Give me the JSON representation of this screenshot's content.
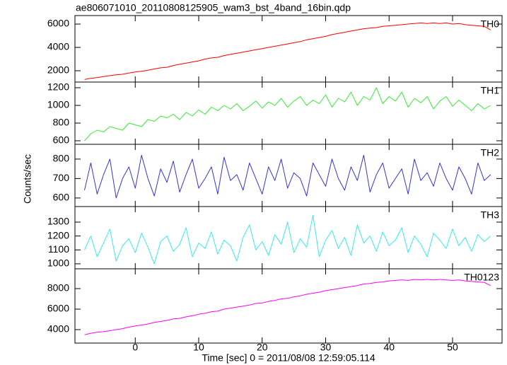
{
  "chart_data": {
    "type": "line",
    "title": "ae806071010_20110808125905_wam3_bst_4band_16bin.qdp",
    "x_label": "Time [sec] 0 = 2011/08/08 12:59:05.114",
    "y_label": "Counts/sec",
    "xlim": [
      -9.5,
      57.8
    ],
    "xticks": [
      0,
      10,
      20,
      30,
      40,
      50
    ],
    "x": [
      -8,
      -7,
      -6,
      -5,
      -4,
      -3,
      -2,
      -1,
      0,
      1,
      2,
      3,
      4,
      5,
      6,
      7,
      8,
      9,
      10,
      11,
      12,
      13,
      14,
      15,
      16,
      17,
      18,
      19,
      20,
      21,
      22,
      23,
      24,
      25,
      26,
      27,
      28,
      29,
      30,
      31,
      32,
      33,
      34,
      35,
      36,
      37,
      38,
      39,
      40,
      41,
      42,
      43,
      44,
      45,
      46,
      47,
      48,
      49,
      50,
      51,
      52,
      53,
      54,
      55,
      56
    ],
    "series": [
      {
        "name": "TH0",
        "color": "#ff0000",
        "ylim": [
          1030,
          6730
        ],
        "yticks": [
          2000,
          4000,
          6000
        ],
        "values": [
          1250,
          1350,
          1420,
          1500,
          1580,
          1650,
          1700,
          1800,
          1900,
          1950,
          2050,
          2150,
          2250,
          2300,
          2450,
          2550,
          2650,
          2750,
          2850,
          3000,
          3100,
          3150,
          3300,
          3400,
          3500,
          3600,
          3700,
          3800,
          3900,
          4000,
          4100,
          4200,
          4300,
          4400,
          4500,
          4650,
          4750,
          4850,
          4950,
          5100,
          5200,
          5300,
          5400,
          5500,
          5600,
          5650,
          5700,
          5800,
          5850,
          5900,
          5950,
          6000,
          6050,
          6100,
          6050,
          6100,
          6050,
          6100,
          6000,
          6050,
          5950,
          5900,
          5850,
          5800,
          5500
        ]
      },
      {
        "name": "TH1",
        "color": "#33ee33",
        "ylim": [
          560,
          1264
        ],
        "yticks": [
          600,
          800,
          1000,
          1200
        ],
        "values": [
          600,
          680,
          720,
          700,
          760,
          740,
          720,
          800,
          780,
          760,
          840,
          820,
          880,
          860,
          900,
          840,
          920,
          880,
          950,
          900,
          980,
          940,
          1000,
          960,
          1020,
          940,
          990,
          1050,
          970,
          1040,
          1000,
          1080,
          980,
          1050,
          1100,
          1000,
          1060,
          1020,
          1120,
          980,
          1080,
          1040,
          1150,
          1000,
          1100,
          1060,
          1200,
          1020,
          1100,
          1050,
          1150,
          980,
          1080,
          1030,
          1100,
          960,
          1050,
          1100,
          990,
          1060,
          1000,
          940,
          1020,
          960,
          1000
        ]
      },
      {
        "name": "TH2",
        "color": "#3333dd",
        "ylim": [
          556,
          876
        ],
        "yticks": [
          600,
          700,
          800
        ],
        "values": [
          640,
          780,
          620,
          720,
          800,
          600,
          700,
          760,
          650,
          820,
          700,
          610,
          750,
          680,
          790,
          630,
          720,
          800,
          650,
          700,
          760,
          620,
          810,
          690,
          720,
          640,
          780,
          700,
          620,
          760,
          690,
          800,
          650,
          730,
          700,
          610,
          780,
          720,
          660,
          800,
          700,
          640,
          760,
          690,
          820,
          630,
          720,
          780,
          650,
          700,
          750,
          620,
          800,
          690,
          730,
          660,
          780,
          700,
          640,
          760,
          700,
          620,
          780,
          690,
          720
        ]
      },
      {
        "name": "TH3",
        "color": "#33eeee",
        "ylim": [
          964,
          1412
        ],
        "yticks": [
          1000,
          1100,
          1200,
          1300
        ],
        "values": [
          1100,
          1200,
          1050,
          1150,
          1250,
          1020,
          1130,
          1180,
          1080,
          1220,
          1120,
          1000,
          1160,
          1200,
          1090,
          1140,
          1260,
          1050,
          1150,
          1110,
          1230,
          1070,
          1170,
          1130,
          1020,
          1190,
          1280,
          1100,
          1160,
          1060,
          1210,
          1140,
          1300,
          1080,
          1180,
          1120,
          1350,
          1050,
          1170,
          1240,
          1110,
          1190,
          1060,
          1280,
          1150,
          1200,
          1090,
          1230,
          1130,
          1170,
          1260,
          1080,
          1200,
          1140,
          1050,
          1220,
          1170,
          1110,
          1250,
          1130,
          1190,
          1090,
          1210,
          1160,
          1200
        ]
      },
      {
        "name": "TH0123",
        "color": "#ff00ff",
        "ylim": [
          2690,
          9931
        ],
        "yticks": [
          4000,
          6000,
          8000
        ],
        "values": [
          3500,
          3650,
          3750,
          3800,
          3900,
          4000,
          4100,
          4250,
          4350,
          4450,
          4550,
          4700,
          4800,
          4900,
          5050,
          5100,
          5250,
          5350,
          5500,
          5600,
          5750,
          5800,
          6000,
          6100,
          6200,
          6300,
          6400,
          6550,
          6600,
          6750,
          6850,
          7000,
          7050,
          7200,
          7300,
          7450,
          7550,
          7650,
          7800,
          7900,
          8000,
          8100,
          8200,
          8300,
          8450,
          8500,
          8600,
          8650,
          8750,
          8800,
          8850,
          8800,
          8900,
          8850,
          8900,
          8850,
          8900,
          8850,
          8800,
          8850,
          8750,
          8700,
          8650,
          8600,
          8300
        ]
      }
    ]
  }
}
